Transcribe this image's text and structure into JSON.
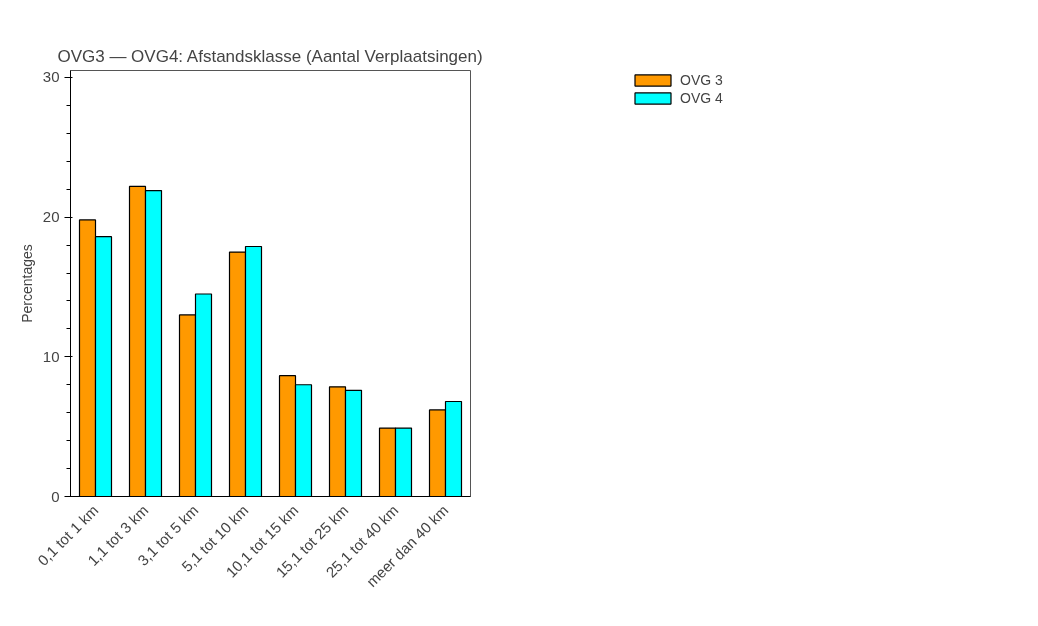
{
  "chart_data": {
    "type": "bar",
    "title": "OVG3 — OVG4: Afstandsklasse (Aantal Verplaatsingen)",
    "ylabel": "Percentages",
    "categories": [
      "0,1 tot 1 km",
      "1,1 tot 3 km",
      "3,1 tot 5 km",
      "5,1 tot 10 km",
      "10,1 tot 15 km",
      "15,1 tot 25 km",
      "25,1 tot 40 km",
      "meer dan 40 km"
    ],
    "series": [
      {
        "name": "OVG 3",
        "color": "#ff9900",
        "values": [
          19.8,
          22.2,
          13.0,
          17.5,
          8.65,
          7.85,
          4.9,
          6.2
        ]
      },
      {
        "name": "OVG 4",
        "color": "#00ffff",
        "values": [
          18.6,
          21.9,
          14.5,
          17.9,
          8.0,
          7.6,
          4.9,
          6.8
        ]
      }
    ],
    "ylim": [
      0,
      30.5
    ],
    "yticks": [
      0,
      10,
      20,
      30
    ],
    "grid": false,
    "legend": "top right"
  }
}
